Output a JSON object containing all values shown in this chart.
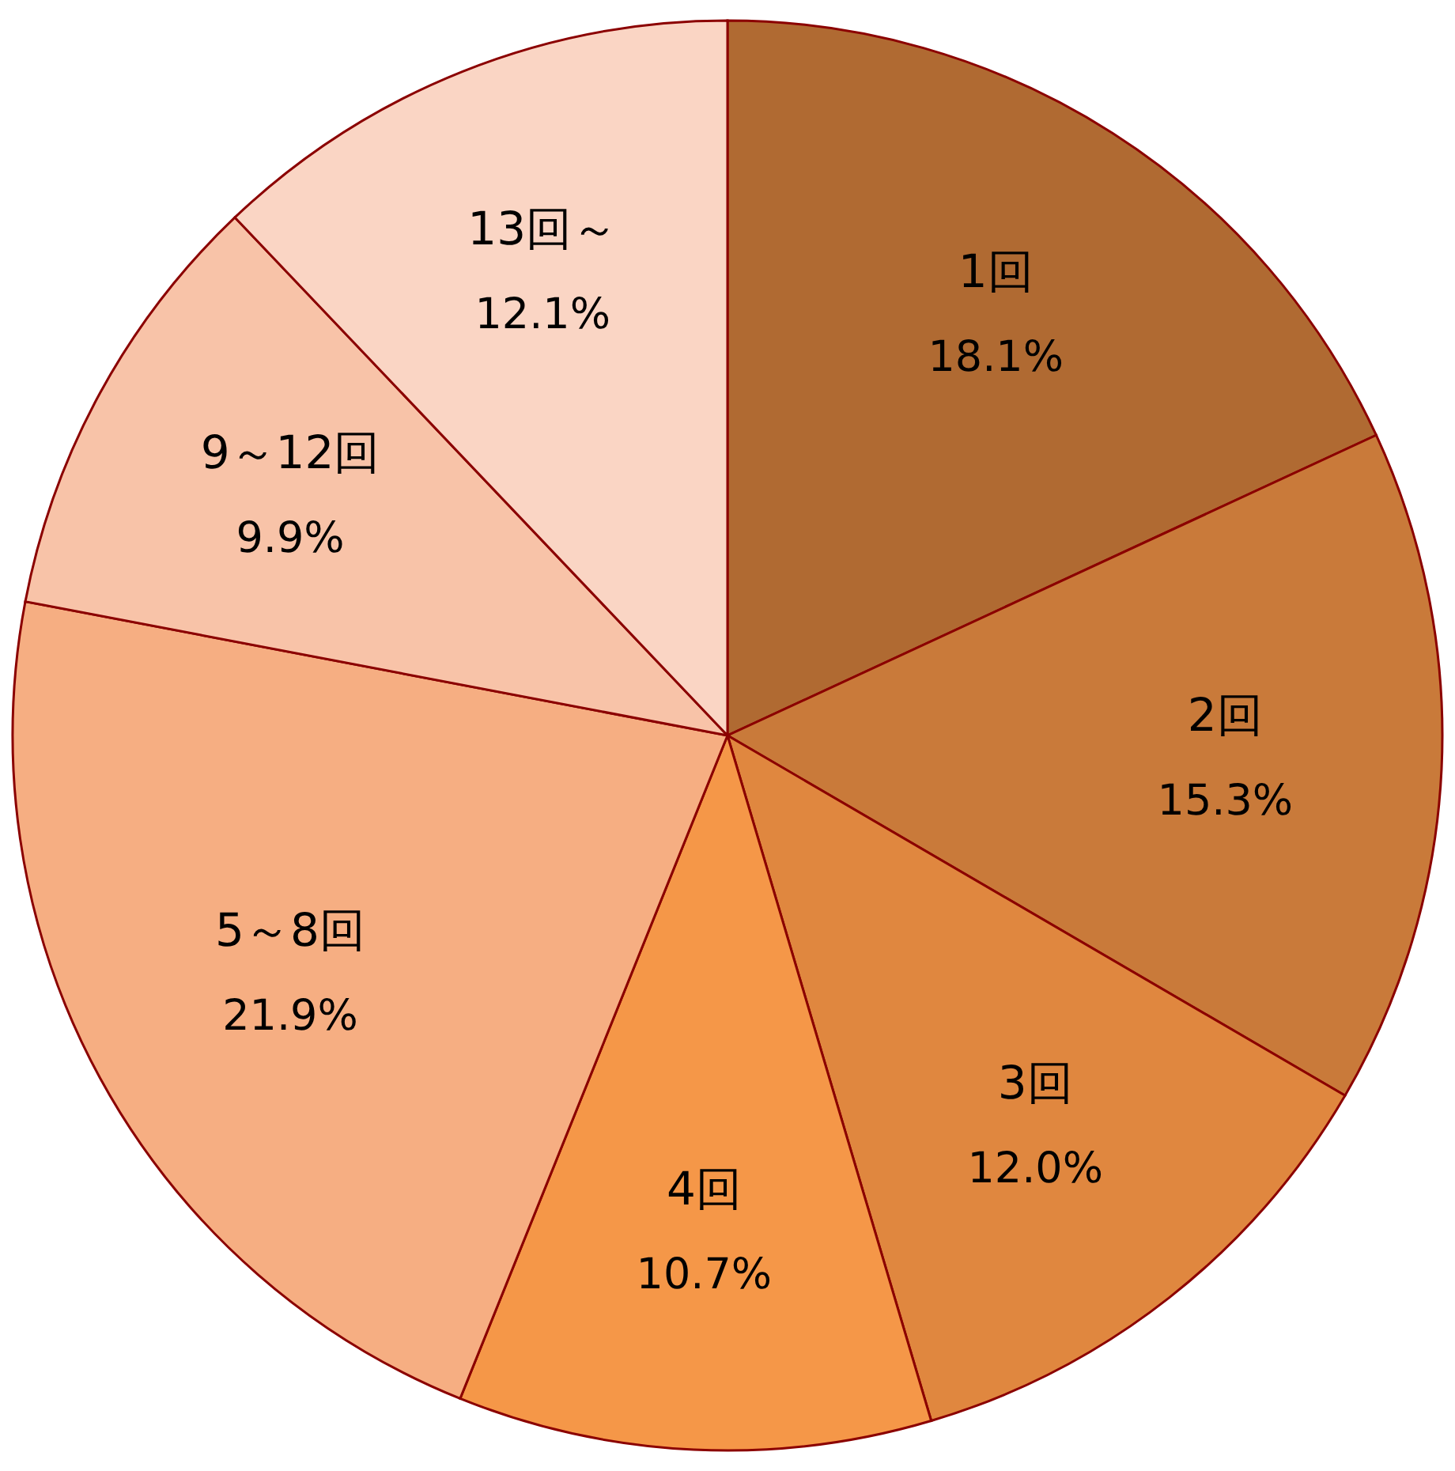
{
  "chart_data": {
    "type": "pie",
    "categories": [
      "1回",
      "2回",
      "3回",
      "4回",
      "5～8回",
      "9～12回",
      "13回～"
    ],
    "values": [
      18.1,
      15.3,
      12.0,
      10.7,
      21.9,
      9.9,
      12.1
    ],
    "colors": [
      "#b06a32",
      "#c97a3a",
      "#e0873f",
      "#f59748",
      "#f6ae82",
      "#f8c3a8",
      "#fad5c4"
    ],
    "value_labels": [
      "18.1%",
      "15.3%",
      "12.0%",
      "10.7%",
      "21.9%",
      "9.9%",
      "12.1%"
    ]
  }
}
